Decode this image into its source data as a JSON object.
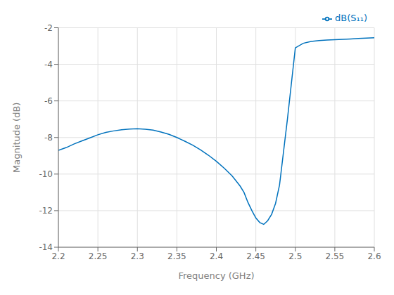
{
  "chart_data": {
    "type": "line",
    "xlabel": "Frequency (GHz)",
    "ylabel": "Magnitude (dB)",
    "x": [
      2.2,
      2.21,
      2.22,
      2.23,
      2.24,
      2.25,
      2.26,
      2.27,
      2.28,
      2.29,
      2.3,
      2.31,
      2.32,
      2.33,
      2.34,
      2.35,
      2.36,
      2.37,
      2.38,
      2.39,
      2.4,
      2.41,
      2.42,
      2.43,
      2.435,
      2.44,
      2.445,
      2.45,
      2.455,
      2.46,
      2.465,
      2.47,
      2.475,
      2.48,
      2.49,
      2.5,
      2.51,
      2.52,
      2.53,
      2.54,
      2.55,
      2.56,
      2.57,
      2.58,
      2.59,
      2.6
    ],
    "series": [
      {
        "name": "dB(S₁₁)",
        "color": "#0072BD",
        "values": [
          -8.7,
          -8.55,
          -8.35,
          -8.18,
          -8.02,
          -7.85,
          -7.72,
          -7.64,
          -7.58,
          -7.54,
          -7.52,
          -7.55,
          -7.6,
          -7.7,
          -7.83,
          -8.0,
          -8.2,
          -8.42,
          -8.68,
          -8.97,
          -9.3,
          -9.68,
          -10.1,
          -10.65,
          -11.0,
          -11.55,
          -12.0,
          -12.4,
          -12.65,
          -12.75,
          -12.55,
          -12.2,
          -11.6,
          -10.6,
          -7.0,
          -3.1,
          -2.85,
          -2.75,
          -2.7,
          -2.67,
          -2.65,
          -2.63,
          -2.61,
          -2.59,
          -2.57,
          -2.55
        ]
      }
    ],
    "xlim": [
      2.2,
      2.6
    ],
    "ylim": [
      -14,
      -2
    ],
    "xticks": [
      2.2,
      2.25,
      2.3,
      2.35,
      2.4,
      2.45,
      2.5,
      2.55,
      2.6
    ],
    "yticks": [
      -14,
      -12,
      -10,
      -8,
      -6,
      -4,
      -2
    ],
    "grid": true,
    "legend": "upper right"
  }
}
